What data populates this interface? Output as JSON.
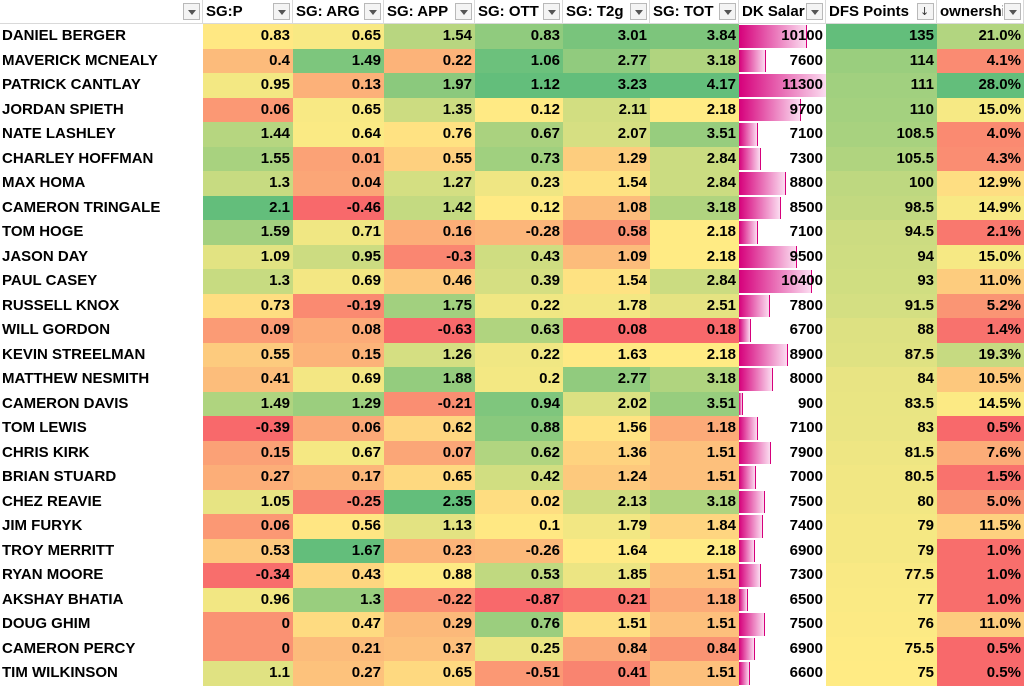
{
  "columns": [
    {
      "key": "name",
      "label": "",
      "filter": true
    },
    {
      "key": "sgp",
      "label": "SG:P",
      "filter": true
    },
    {
      "key": "arg",
      "label": "SG: ARG",
      "filter": true
    },
    {
      "key": "app",
      "label": "SG: APP",
      "filter": true
    },
    {
      "key": "ott",
      "label": "SG: OTT",
      "filter": true
    },
    {
      "key": "t2g",
      "label": "SG: T2g",
      "filter": true
    },
    {
      "key": "tot",
      "label": "SG: TOT",
      "filter": true
    },
    {
      "key": "sal",
      "label": "DK Salary",
      "filter": true
    },
    {
      "key": "pts",
      "label": "DFS Points",
      "filter": true,
      "sort": "↓"
    },
    {
      "key": "own",
      "label": "ownership",
      "filter": true
    }
  ],
  "colors": {
    "red": "#f8696b",
    "yellow": "#ffeb84",
    "green": "#63be7b",
    "bar_light": "#fbdcf0",
    "bar_dark": "#d6007b"
  },
  "ranges": {
    "sgp": [
      -0.39,
      2.1
    ],
    "arg": [
      -0.46,
      1.67
    ],
    "app": [
      -0.63,
      2.35
    ],
    "ott": [
      -0.87,
      1.12
    ],
    "t2g": [
      0.08,
      3.23
    ],
    "tot": [
      0.18,
      4.17
    ],
    "sal": [
      6000,
      11300
    ],
    "pts": [
      75,
      135
    ],
    "own": [
      0.5,
      28.0
    ]
  },
  "rows": [
    {
      "name": "DANIEL BERGER",
      "sgp": "0.83",
      "arg": "0.65",
      "app": "1.54",
      "ott": "0.83",
      "t2g": "3.01",
      "tot": "3.84",
      "sal": "10100",
      "pts": "135",
      "own": "21.0%"
    },
    {
      "name": "MAVERICK MCNEALY",
      "sgp": "0.4",
      "arg": "1.49",
      "app": "0.22",
      "ott": "1.06",
      "t2g": "2.77",
      "tot": "3.18",
      "sal": "7600",
      "pts": "114",
      "own": "4.1%"
    },
    {
      "name": "PATRICK CANTLAY",
      "sgp": "0.95",
      "arg": "0.13",
      "app": "1.97",
      "ott": "1.12",
      "t2g": "3.23",
      "tot": "4.17",
      "sal": "11300",
      "pts": "111",
      "own": "28.0%"
    },
    {
      "name": "JORDAN SPIETH",
      "sgp": "0.06",
      "arg": "0.65",
      "app": "1.35",
      "ott": "0.12",
      "t2g": "2.11",
      "tot": "2.18",
      "sal": "9700",
      "pts": "110",
      "own": "15.0%"
    },
    {
      "name": "NATE LASHLEY",
      "sgp": "1.44",
      "arg": "0.64",
      "app": "0.76",
      "ott": "0.67",
      "t2g": "2.07",
      "tot": "3.51",
      "sal": "7100",
      "pts": "108.5",
      "own": "4.0%"
    },
    {
      "name": "CHARLEY HOFFMAN",
      "sgp": "1.55",
      "arg": "0.01",
      "app": "0.55",
      "ott": "0.73",
      "t2g": "1.29",
      "tot": "2.84",
      "sal": "7300",
      "pts": "105.5",
      "own": "4.3%"
    },
    {
      "name": "MAX HOMA",
      "sgp": "1.3",
      "arg": "0.04",
      "app": "1.27",
      "ott": "0.23",
      "t2g": "1.54",
      "tot": "2.84",
      "sal": "8800",
      "pts": "100",
      "own": "12.9%"
    },
    {
      "name": "CAMERON TRINGALE",
      "sgp": "2.1",
      "arg": "-0.46",
      "app": "1.42",
      "ott": "0.12",
      "t2g": "1.08",
      "tot": "3.18",
      "sal": "8500",
      "pts": "98.5",
      "own": "14.9%"
    },
    {
      "name": "TOM HOGE",
      "sgp": "1.59",
      "arg": "0.71",
      "app": "0.16",
      "ott": "-0.28",
      "t2g": "0.58",
      "tot": "2.18",
      "sal": "7100",
      "pts": "94.5",
      "own": "2.1%"
    },
    {
      "name": "JASON DAY",
      "sgp": "1.09",
      "arg": "0.95",
      "app": "-0.3",
      "ott": "0.43",
      "t2g": "1.09",
      "tot": "2.18",
      "sal": "9500",
      "pts": "94",
      "own": "15.0%"
    },
    {
      "name": "PAUL CASEY",
      "sgp": "1.3",
      "arg": "0.69",
      "app": "0.46",
      "ott": "0.39",
      "t2g": "1.54",
      "tot": "2.84",
      "sal": "10400",
      "pts": "93",
      "own": "11.0%"
    },
    {
      "name": "RUSSELL KNOX",
      "sgp": "0.73",
      "arg": "-0.19",
      "app": "1.75",
      "ott": "0.22",
      "t2g": "1.78",
      "tot": "2.51",
      "sal": "7800",
      "pts": "91.5",
      "own": "5.2%"
    },
    {
      "name": "WILL GORDON",
      "sgp": "0.09",
      "arg": "0.08",
      "app": "-0.63",
      "ott": "0.63",
      "t2g": "0.08",
      "tot": "0.18",
      "sal": "6700",
      "pts": "88",
      "own": "1.4%"
    },
    {
      "name": "KEVIN STREELMAN",
      "sgp": "0.55",
      "arg": "0.15",
      "app": "1.26",
      "ott": "0.22",
      "t2g": "1.63",
      "tot": "2.18",
      "sal": "8900",
      "pts": "87.5",
      "own": "19.3%"
    },
    {
      "name": "MATTHEW NESMITH",
      "sgp": "0.41",
      "arg": "0.69",
      "app": "1.88",
      "ott": "0.2",
      "t2g": "2.77",
      "tot": "3.18",
      "sal": "8000",
      "pts": "84",
      "own": "10.5%"
    },
    {
      "name": "CAMERON DAVIS",
      "sgp": "1.49",
      "arg": "1.29",
      "app": "-0.21",
      "ott": "0.94",
      "t2g": "2.02",
      "tot": "3.51",
      "sal": "900",
      "pts": "83.5",
      "own": "14.5%"
    },
    {
      "name": "TOM LEWIS",
      "sgp": "-0.39",
      "arg": "0.06",
      "app": "0.62",
      "ott": "0.88",
      "t2g": "1.56",
      "tot": "1.18",
      "sal": "7100",
      "pts": "83",
      "own": "0.5%"
    },
    {
      "name": "CHRIS KIRK",
      "sgp": "0.15",
      "arg": "0.67",
      "app": "0.07",
      "ott": "0.62",
      "t2g": "1.36",
      "tot": "1.51",
      "sal": "7900",
      "pts": "81.5",
      "own": "7.6%"
    },
    {
      "name": "BRIAN STUARD",
      "sgp": "0.27",
      "arg": "0.17",
      "app": "0.65",
      "ott": "0.42",
      "t2g": "1.24",
      "tot": "1.51",
      "sal": "7000",
      "pts": "80.5",
      "own": "1.5%"
    },
    {
      "name": "CHEZ REAVIE",
      "sgp": "1.05",
      "arg": "-0.25",
      "app": "2.35",
      "ott": "0.02",
      "t2g": "2.13",
      "tot": "3.18",
      "sal": "7500",
      "pts": "80",
      "own": "5.0%"
    },
    {
      "name": "JIM FURYK",
      "sgp": "0.06",
      "arg": "0.56",
      "app": "1.13",
      "ott": "0.1",
      "t2g": "1.79",
      "tot": "1.84",
      "sal": "7400",
      "pts": "79",
      "own": "11.5%"
    },
    {
      "name": "TROY MERRITT",
      "sgp": "0.53",
      "arg": "1.67",
      "app": "0.23",
      "ott": "-0.26",
      "t2g": "1.64",
      "tot": "2.18",
      "sal": "6900",
      "pts": "79",
      "own": "1.0%"
    },
    {
      "name": "RYAN MOORE",
      "sgp": "-0.34",
      "arg": "0.43",
      "app": "0.88",
      "ott": "0.53",
      "t2g": "1.85",
      "tot": "1.51",
      "sal": "7300",
      "pts": "77.5",
      "own": "1.0%"
    },
    {
      "name": "AKSHAY BHATIA",
      "sgp": "0.96",
      "arg": "1.3",
      "app": "-0.22",
      "ott": "-0.87",
      "t2g": "0.21",
      "tot": "1.18",
      "sal": "6500",
      "pts": "77",
      "own": "1.0%"
    },
    {
      "name": "DOUG GHIM",
      "sgp": "0",
      "arg": "0.47",
      "app": "0.29",
      "ott": "0.76",
      "t2g": "1.51",
      "tot": "1.51",
      "sal": "7500",
      "pts": "76",
      "own": "11.0%"
    },
    {
      "name": "CAMERON PERCY",
      "sgp": "0",
      "arg": "0.21",
      "app": "0.37",
      "ott": "0.25",
      "t2g": "0.84",
      "tot": "0.84",
      "sal": "6900",
      "pts": "75.5",
      "own": "0.5%"
    },
    {
      "name": "TIM WILKINSON",
      "sgp": "1.1",
      "arg": "0.27",
      "app": "0.65",
      "ott": "-0.51",
      "t2g": "0.41",
      "tot": "1.51",
      "sal": "6600",
      "pts": "75",
      "own": "0.5%"
    }
  ]
}
